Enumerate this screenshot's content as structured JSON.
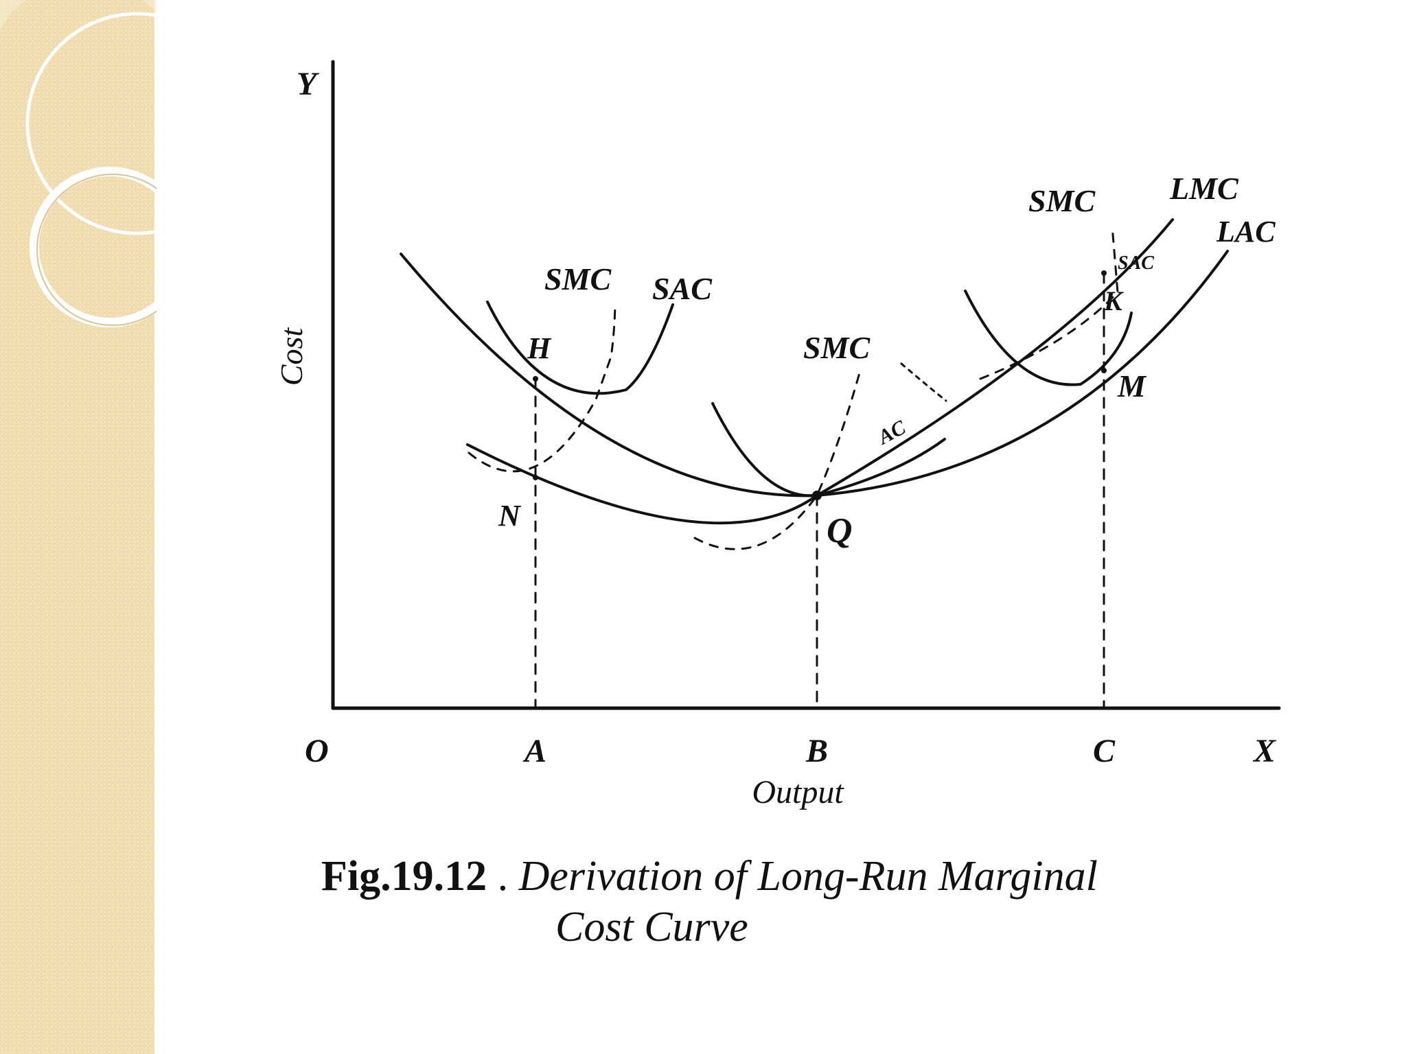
{
  "figure": {
    "number": "Fig.19.12",
    "title_line1": "Derivation of Long-Run Marginal",
    "title_line2": "Cost Curve",
    "axes": {
      "y_symbol": "Y",
      "y_label": "Cost",
      "origin": "O",
      "x_symbol": "X",
      "x_label": "Output"
    },
    "x_marks": {
      "a": "A",
      "b": "B",
      "c": "C"
    },
    "points": {
      "h": "H",
      "n": "N",
      "q": "Q",
      "k": "K",
      "m": "M"
    },
    "curves": {
      "smc1": "SMC",
      "sac1": "SAC",
      "smc2": "SMC",
      "sac2": "AC",
      "smc3": "SMC",
      "sac3": "SAC",
      "lmc": "LMC",
      "lac": "LAC"
    }
  },
  "colors": {
    "side_panel": "#f0dcae",
    "ink": "#111111"
  }
}
